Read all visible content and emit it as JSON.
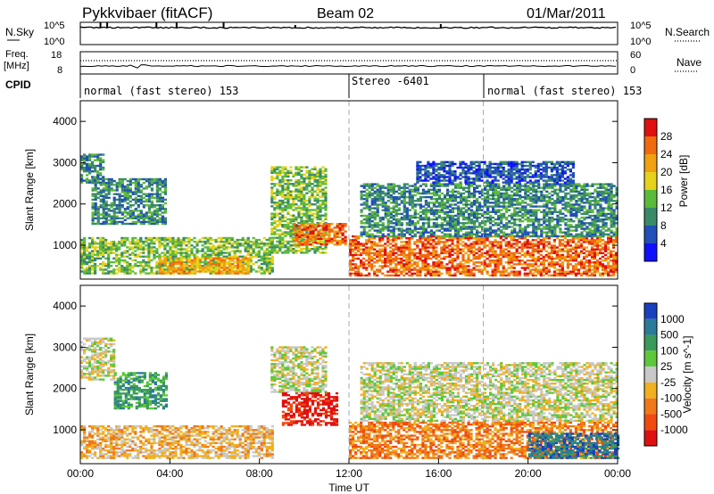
{
  "header": {
    "station": "Pykkvibaer (fitACF)",
    "beam": "Beam 02",
    "date": "01/Mar/2011"
  },
  "noise_panel": {
    "left_label": "N.Sky",
    "left_ticks": [
      "10^5",
      "10^0"
    ],
    "right_label": "N.Search",
    "right_ticks": [
      "10^5",
      "10^0"
    ]
  },
  "freq_panel": {
    "left_label_1": "Freq.",
    "left_label_2": "[MHz]",
    "left_ticks": [
      "18",
      "8"
    ],
    "right_label": "Nave",
    "right_ticks": [
      "60",
      "0"
    ]
  },
  "cpid_panel": {
    "label": "CPID",
    "segments": [
      {
        "label": "normal (fast stereo) 153",
        "start": 0
      },
      {
        "label": "Stereo -6401",
        "start": 12
      },
      {
        "label": "normal (fast stereo) 153",
        "start": 18
      }
    ]
  },
  "axes": {
    "ylabel": "Slant Range [km]",
    "yticks": [
      "1000",
      "2000",
      "3000",
      "4000"
    ],
    "xticks": [
      "00:00",
      "04:00",
      "08:00",
      "12:00",
      "16:00",
      "20:00",
      "00:00"
    ],
    "xlabel": "Time UT"
  },
  "chart_data": [
    {
      "type": "heatmap",
      "title": "Power",
      "x_range_hours": [
        0,
        24
      ],
      "y_range_km": [
        180,
        4500
      ],
      "colorbar_label": "Power [dB]",
      "colorbar_ticks": [
        "4",
        "8",
        "12",
        "16",
        "20",
        "24",
        "28"
      ],
      "colors": [
        "#1010ff",
        "#2050b8",
        "#3a8a6a",
        "#5cba3a",
        "#e6d21a",
        "#f0a010",
        "#f06a10",
        "#e01010"
      ],
      "regions": [
        {
          "t0": 0.0,
          "t1": 8.6,
          "r0": 300,
          "r1": 1200,
          "level": 3
        },
        {
          "t0": 0.5,
          "t1": 3.8,
          "r0": 1500,
          "r1": 2600,
          "level": 2
        },
        {
          "t0": 0.0,
          "t1": 1.0,
          "r0": 2500,
          "r1": 3200,
          "level": 2
        },
        {
          "t0": 3.5,
          "t1": 7.5,
          "r0": 300,
          "r1": 700,
          "level": 5
        },
        {
          "t0": 8.5,
          "t1": 11.0,
          "r0": 800,
          "r1": 2900,
          "level": 3
        },
        {
          "t0": 9.5,
          "t1": 11.8,
          "r0": 1000,
          "r1": 1500,
          "level": 6
        },
        {
          "t0": 12.0,
          "t1": 24.0,
          "r0": 250,
          "r1": 1200,
          "level": 6
        },
        {
          "t0": 12.5,
          "t1": 24.0,
          "r0": 1200,
          "r1": 2500,
          "level": 2
        },
        {
          "t0": 15.0,
          "t1": 22.0,
          "r0": 2500,
          "r1": 3000,
          "level": 1
        }
      ]
    },
    {
      "type": "heatmap",
      "title": "Velocity",
      "x_range_hours": [
        0,
        24
      ],
      "y_range_km": [
        180,
        4500
      ],
      "colorbar_label": "Velocity [m s^-1]",
      "colorbar_ticks": [
        "1000",
        "500",
        "100",
        "25",
        "-25",
        "-100",
        "-500",
        "-1000"
      ],
      "colors": [
        "#1a40c0",
        "#2a7a9a",
        "#3a9a5a",
        "#5cc83a",
        "#c8c8c8",
        "#f0b020",
        "#f07818",
        "#f04a10",
        "#e01010"
      ],
      "regions": [
        {
          "t0": 0.0,
          "t1": 8.6,
          "r0": 300,
          "r1": 1100,
          "level": 5
        },
        {
          "t0": 0.0,
          "t1": 1.5,
          "r0": 2200,
          "r1": 3200,
          "level": 4
        },
        {
          "t0": 1.5,
          "t1": 3.8,
          "r0": 1500,
          "r1": 2400,
          "level": 2
        },
        {
          "t0": 8.5,
          "t1": 11.0,
          "r0": 1900,
          "r1": 3000,
          "level": 4
        },
        {
          "t0": 9.0,
          "t1": 11.5,
          "r0": 1100,
          "r1": 1900,
          "level": 8
        },
        {
          "t0": 12.0,
          "t1": 24.0,
          "r0": 300,
          "r1": 1200,
          "level": 6
        },
        {
          "t0": 12.5,
          "t1": 24.0,
          "r0": 1200,
          "r1": 2600,
          "level": 4
        },
        {
          "t0": 20.0,
          "t1": 24.0,
          "r0": 300,
          "r1": 900,
          "level": 1
        }
      ]
    }
  ]
}
